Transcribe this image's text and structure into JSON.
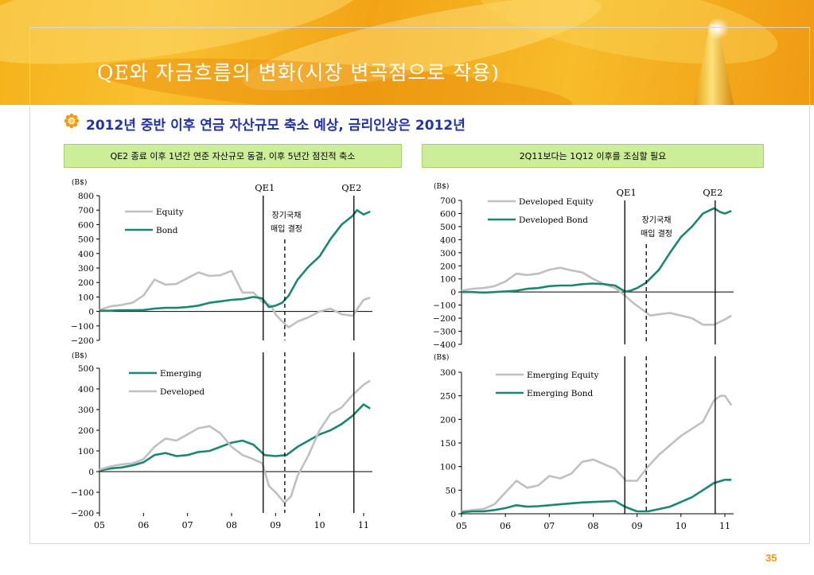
{
  "title": "QE와 자금흐름의 변화(시장 변곡점으로 작용)",
  "headline": "2012년 중반 이후 연금 자산규모 축소 예상, 금리인상은 2012년",
  "left_header": "QE2 종료 이후 1년간 연준 자산규모 동결, 이후 5년간 점진적 축소",
  "right_header": "2Q11보다는 1Q12 이후를 조심할 필요",
  "page_number": "35",
  "colors": {
    "gray_series": "#c0c0c0",
    "green_series": "#1a8870",
    "header_fill": "#ccee99",
    "accent": "#f29a12",
    "headline": "#2233aa"
  },
  "chart_data": [
    {
      "id": "tl",
      "type": "line",
      "unit": "(B$)",
      "ylim": [
        -200,
        800
      ],
      "yticks": [
        -200,
        -100,
        0,
        100,
        200,
        300,
        400,
        500,
        600,
        700,
        800
      ],
      "xlim": [
        2005.0,
        2011.2
      ],
      "vlines": [
        {
          "x": 2008.72,
          "label": "QE1",
          "style": "solid"
        },
        {
          "x": 2009.21,
          "label": "",
          "style": "dashed"
        },
        {
          "x": 2010.78,
          "label": "QE2",
          "style": "solid"
        }
      ],
      "annotation": [
        "장기국채",
        "매입 결정"
      ],
      "series": [
        {
          "name": "Equity",
          "color": "gray",
          "x": [
            2005.0,
            2005.25,
            2005.5,
            2005.75,
            2006.0,
            2006.25,
            2006.5,
            2006.75,
            2007.0,
            2007.25,
            2007.5,
            2007.75,
            2008.0,
            2008.25,
            2008.5,
            2008.7,
            2008.9,
            2009.0,
            2009.15,
            2009.3,
            2009.5,
            2009.75,
            2010.0,
            2010.25,
            2010.5,
            2010.75,
            2011.0,
            2011.15
          ],
          "y": [
            10,
            35,
            45,
            60,
            110,
            220,
            185,
            190,
            230,
            270,
            245,
            250,
            280,
            130,
            130,
            65,
            40,
            -20,
            -70,
            -110,
            -70,
            -40,
            0,
            20,
            -20,
            -30,
            80,
            95
          ]
        },
        {
          "name": "Bond",
          "color": "green",
          "x": [
            2005.0,
            2005.25,
            2005.5,
            2005.75,
            2006.0,
            2006.25,
            2006.5,
            2006.75,
            2007.0,
            2007.25,
            2007.5,
            2007.75,
            2008.0,
            2008.25,
            2008.5,
            2008.7,
            2008.85,
            2009.0,
            2009.15,
            2009.3,
            2009.5,
            2009.75,
            2010.0,
            2010.25,
            2010.5,
            2010.75,
            2010.85,
            2011.0,
            2011.15
          ],
          "y": [
            5,
            5,
            8,
            8,
            10,
            20,
            25,
            25,
            30,
            40,
            60,
            70,
            80,
            85,
            100,
            90,
            30,
            40,
            60,
            110,
            220,
            310,
            380,
            500,
            600,
            660,
            700,
            670,
            690
          ]
        }
      ],
      "xticks": []
    },
    {
      "id": "bl",
      "type": "line",
      "unit": "(B$)",
      "ylim": [
        -200,
        500
      ],
      "yticks": [
        -200,
        -100,
        0,
        100,
        200,
        300,
        400,
        500
      ],
      "xlim": [
        2005.0,
        2011.2
      ],
      "vlines": [
        {
          "x": 2008.72,
          "label": "",
          "style": "solid"
        },
        {
          "x": 2009.21,
          "label": "",
          "style": "dashed"
        },
        {
          "x": 2010.78,
          "label": "",
          "style": "solid"
        }
      ],
      "series": [
        {
          "name": "Emerging",
          "color": "green",
          "x": [
            2005.0,
            2005.25,
            2005.5,
            2005.75,
            2006.0,
            2006.25,
            2006.5,
            2006.75,
            2007.0,
            2007.25,
            2007.5,
            2007.75,
            2008.0,
            2008.25,
            2008.5,
            2008.75,
            2009.0,
            2009.25,
            2009.5,
            2009.75,
            2010.0,
            2010.25,
            2010.5,
            2010.75,
            2011.0,
            2011.15
          ],
          "y": [
            5,
            15,
            20,
            30,
            45,
            80,
            90,
            75,
            80,
            95,
            100,
            120,
            140,
            150,
            130,
            80,
            75,
            80,
            120,
            150,
            180,
            200,
            230,
            270,
            325,
            305
          ]
        },
        {
          "name": "Developed",
          "color": "gray",
          "x": [
            2005.0,
            2005.25,
            2005.5,
            2005.75,
            2006.0,
            2006.25,
            2006.5,
            2006.75,
            2007.0,
            2007.25,
            2007.5,
            2007.75,
            2008.0,
            2008.25,
            2008.5,
            2008.7,
            2008.85,
            2009.0,
            2009.2,
            2009.35,
            2009.5,
            2009.75,
            2010.0,
            2010.25,
            2010.5,
            2010.75,
            2011.0,
            2011.15
          ],
          "y": [
            10,
            25,
            35,
            40,
            60,
            120,
            160,
            150,
            180,
            210,
            220,
            185,
            120,
            80,
            60,
            40,
            -70,
            -100,
            -150,
            -120,
            -20,
            80,
            200,
            280,
            310,
            370,
            420,
            440
          ]
        }
      ],
      "xticks": [
        "05",
        "06",
        "07",
        "08",
        "09",
        "10",
        "11"
      ]
    },
    {
      "id": "tr",
      "type": "line",
      "unit": "(B$)",
      "ylim": [
        -400,
        700
      ],
      "yticks": [
        -400,
        -300,
        -200,
        -100,
        0,
        100,
        200,
        300,
        400,
        500,
        600,
        700
      ],
      "xlim": [
        2005.0,
        2011.2
      ],
      "vlines": [
        {
          "x": 2008.72,
          "label": "QE1",
          "style": "solid"
        },
        {
          "x": 2009.21,
          "label": "",
          "style": "dashed"
        },
        {
          "x": 2010.78,
          "label": "QE2",
          "style": "solid"
        }
      ],
      "annotation": [
        "장기국채",
        "매입 결정"
      ],
      "series": [
        {
          "name": "Developed Equity",
          "color": "gray",
          "x": [
            2005.0,
            2005.25,
            2005.5,
            2005.75,
            2006.0,
            2006.25,
            2006.5,
            2006.75,
            2007.0,
            2007.25,
            2007.5,
            2007.75,
            2008.0,
            2008.25,
            2008.5,
            2008.7,
            2008.9,
            2009.1,
            2009.3,
            2009.5,
            2009.75,
            2010.0,
            2010.25,
            2010.5,
            2010.75,
            2011.0,
            2011.15
          ],
          "y": [
            10,
            25,
            30,
            45,
            80,
            140,
            130,
            140,
            170,
            185,
            165,
            150,
            100,
            60,
            30,
            -20,
            -80,
            -130,
            -180,
            -170,
            -160,
            -180,
            -200,
            -250,
            -250,
            -210,
            -180
          ]
        },
        {
          "name": "Developed Bond",
          "color": "green",
          "x": [
            2005.0,
            2005.25,
            2005.5,
            2005.75,
            2006.0,
            2006.25,
            2006.5,
            2006.75,
            2007.0,
            2007.25,
            2007.5,
            2007.75,
            2008.0,
            2008.25,
            2008.5,
            2008.72,
            2008.85,
            2009.0,
            2009.2,
            2009.5,
            2009.75,
            2010.0,
            2010.25,
            2010.5,
            2010.75,
            2010.9,
            2011.0,
            2011.15
          ],
          "y": [
            0,
            0,
            -5,
            0,
            5,
            10,
            25,
            30,
            45,
            50,
            50,
            60,
            65,
            60,
            50,
            5,
            10,
            30,
            70,
            170,
            300,
            420,
            500,
            600,
            640,
            610,
            600,
            620
          ]
        }
      ],
      "xticks": []
    },
    {
      "id": "br",
      "type": "line",
      "unit": "(B$)",
      "ylim": [
        0,
        300
      ],
      "yticks": [
        0,
        50,
        100,
        150,
        200,
        250,
        300
      ],
      "xlim": [
        2005.0,
        2011.2
      ],
      "vlines": [
        {
          "x": 2008.72,
          "label": "",
          "style": "solid"
        },
        {
          "x": 2009.21,
          "label": "",
          "style": "dashed"
        },
        {
          "x": 2010.78,
          "label": "",
          "style": "solid"
        }
      ],
      "series": [
        {
          "name": "Emerging Equity",
          "color": "gray",
          "x": [
            2005.0,
            2005.25,
            2005.5,
            2005.75,
            2006.0,
            2006.25,
            2006.5,
            2006.75,
            2007.0,
            2007.25,
            2007.5,
            2007.75,
            2008.0,
            2008.25,
            2008.5,
            2008.75,
            2009.0,
            2009.25,
            2009.5,
            2009.75,
            2010.0,
            2010.25,
            2010.5,
            2010.75,
            2010.9,
            2011.0,
            2011.15
          ],
          "y": [
            5,
            8,
            10,
            20,
            45,
            70,
            55,
            60,
            80,
            75,
            85,
            110,
            115,
            105,
            95,
            70,
            70,
            100,
            125,
            145,
            165,
            180,
            195,
            240,
            250,
            250,
            230
          ]
        },
        {
          "name": "Emerging Bond",
          "color": "green",
          "x": [
            2005.0,
            2005.25,
            2005.5,
            2005.75,
            2006.0,
            2006.25,
            2006.5,
            2006.75,
            2007.0,
            2007.25,
            2007.5,
            2007.75,
            2008.0,
            2008.25,
            2008.5,
            2008.72,
            2009.0,
            2009.25,
            2009.5,
            2009.75,
            2010.0,
            2010.25,
            2010.5,
            2010.75,
            2011.0,
            2011.15
          ],
          "y": [
            3,
            5,
            5,
            8,
            12,
            18,
            15,
            16,
            18,
            20,
            22,
            24,
            25,
            26,
            27,
            15,
            5,
            5,
            10,
            15,
            25,
            35,
            50,
            65,
            72,
            72
          ]
        }
      ],
      "xticks": [
        "05",
        "06",
        "07",
        "08",
        "09",
        "10",
        "11"
      ]
    }
  ]
}
